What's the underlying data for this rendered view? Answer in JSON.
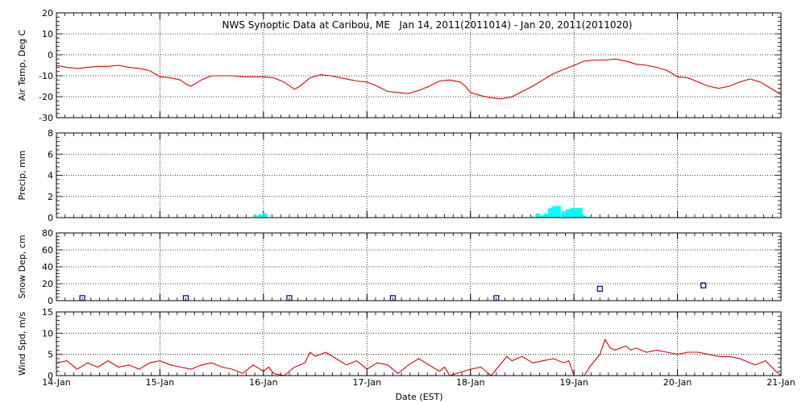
{
  "chart_data": {
    "type": "multi-panel",
    "title": "NWS Synoptic Data at Caribou, ME   Jan 14, 2011(2011014) - Jan 20, 2011(2011020)",
    "xlabel": "Date (EST)",
    "x_ticks": [
      "14-Jan",
      "15-Jan",
      "16-Jan",
      "17-Jan",
      "18-Jan",
      "19-Jan",
      "20-Jan",
      "21-Jan"
    ],
    "xlim_days": [
      0,
      7
    ],
    "panels": [
      {
        "id": "air-temp",
        "type": "line",
        "ylabel": "Air Temp, Deg C",
        "ylim": [
          -30,
          20
        ],
        "yticks": [
          -30,
          -20,
          -10,
          0,
          10,
          20
        ],
        "color": "#dd0000",
        "points": [
          [
            0,
            -5
          ],
          [
            0.1,
            -6
          ],
          [
            0.2,
            -6.5
          ],
          [
            0.3,
            -6
          ],
          [
            0.4,
            -5.5
          ],
          [
            0.5,
            -5.5
          ],
          [
            0.6,
            -5
          ],
          [
            0.7,
            -6
          ],
          [
            0.8,
            -6.5
          ],
          [
            0.9,
            -7.5
          ],
          [
            1.0,
            -10.5
          ],
          [
            1.1,
            -11
          ],
          [
            1.2,
            -12
          ],
          [
            1.25,
            -14
          ],
          [
            1.3,
            -15
          ],
          [
            1.4,
            -12
          ],
          [
            1.5,
            -10
          ],
          [
            1.6,
            -10
          ],
          [
            1.7,
            -10
          ],
          [
            1.8,
            -10.5
          ],
          [
            1.9,
            -10.5
          ],
          [
            2.0,
            -10.5
          ],
          [
            2.1,
            -11
          ],
          [
            2.2,
            -13
          ],
          [
            2.3,
            -16.5
          ],
          [
            2.35,
            -15
          ],
          [
            2.45,
            -11
          ],
          [
            2.55,
            -9.5
          ],
          [
            2.65,
            -10
          ],
          [
            2.8,
            -11.5
          ],
          [
            2.9,
            -12.5
          ],
          [
            3.0,
            -13
          ],
          [
            3.1,
            -15
          ],
          [
            3.2,
            -17.5
          ],
          [
            3.3,
            -18
          ],
          [
            3.4,
            -18.5
          ],
          [
            3.5,
            -17
          ],
          [
            3.6,
            -15
          ],
          [
            3.7,
            -12.5
          ],
          [
            3.8,
            -12
          ],
          [
            3.9,
            -13
          ],
          [
            3.95,
            -15
          ],
          [
            4.0,
            -18
          ],
          [
            4.1,
            -19.5
          ],
          [
            4.2,
            -20.5
          ],
          [
            4.3,
            -21
          ],
          [
            4.4,
            -20
          ],
          [
            4.5,
            -17.5
          ],
          [
            4.6,
            -15
          ],
          [
            4.7,
            -12
          ],
          [
            4.8,
            -9
          ],
          [
            4.9,
            -7
          ],
          [
            5.0,
            -5
          ],
          [
            5.1,
            -3
          ],
          [
            5.2,
            -2.5
          ],
          [
            5.3,
            -2.5
          ],
          [
            5.4,
            -2
          ],
          [
            5.5,
            -3
          ],
          [
            5.6,
            -4.5
          ],
          [
            5.7,
            -5
          ],
          [
            5.8,
            -6
          ],
          [
            5.9,
            -7.5
          ],
          [
            6.0,
            -10.5
          ],
          [
            6.1,
            -11
          ],
          [
            6.2,
            -13
          ],
          [
            6.3,
            -15
          ],
          [
            6.4,
            -16
          ],
          [
            6.5,
            -15
          ],
          [
            6.6,
            -13
          ],
          [
            6.7,
            -11.5
          ],
          [
            6.8,
            -13
          ],
          [
            6.9,
            -16
          ],
          [
            7.0,
            -19
          ]
        ]
      },
      {
        "id": "precip",
        "type": "bar",
        "ylabel": "Precip, mm",
        "ylim": [
          0,
          8
        ],
        "yticks": [
          0,
          2,
          4,
          6,
          8
        ],
        "color": "#00ffff",
        "bar_width_days": 0.0417,
        "bars": [
          [
            1.9,
            0.2
          ],
          [
            1.95,
            0.3
          ],
          [
            1.99,
            0.4
          ],
          [
            4.58,
            0.1
          ],
          [
            4.63,
            0.4
          ],
          [
            4.67,
            0.2
          ],
          [
            4.71,
            0.4
          ],
          [
            4.75,
            0.9
          ],
          [
            4.79,
            1.1
          ],
          [
            4.83,
            1.1
          ],
          [
            4.88,
            0.6
          ],
          [
            4.92,
            0.8
          ],
          [
            4.96,
            0.9
          ],
          [
            5.0,
            0.9
          ],
          [
            5.04,
            0.9
          ],
          [
            5.08,
            0.2
          ],
          [
            5.13,
            0.1
          ]
        ]
      },
      {
        "id": "snow-depth",
        "type": "scatter",
        "ylabel": "Snow Dep, cm",
        "ylim": [
          0,
          80
        ],
        "yticks": [
          0,
          20,
          40,
          60,
          80
        ],
        "color": "#000080",
        "points": [
          [
            0.25,
            3
          ],
          [
            1.25,
            3
          ],
          [
            2.25,
            3
          ],
          [
            3.25,
            3
          ],
          [
            4.25,
            3
          ],
          [
            5.25,
            14
          ],
          [
            6.25,
            18
          ]
        ]
      },
      {
        "id": "wind-speed",
        "type": "line",
        "ylabel": "Wind Spd, m/s",
        "ylim": [
          0,
          15
        ],
        "yticks": [
          0,
          5,
          10,
          15
        ],
        "color": "#dd0000",
        "points": [
          [
            0,
            3
          ],
          [
            0.1,
            3.5
          ],
          [
            0.15,
            2.5
          ],
          [
            0.2,
            1.5
          ],
          [
            0.3,
            3
          ],
          [
            0.4,
            2
          ],
          [
            0.5,
            3.5
          ],
          [
            0.6,
            2
          ],
          [
            0.7,
            2.5
          ],
          [
            0.8,
            1.5
          ],
          [
            0.9,
            3
          ],
          [
            1.0,
            3.5
          ],
          [
            1.1,
            2.5
          ],
          [
            1.2,
            2
          ],
          [
            1.3,
            1.5
          ],
          [
            1.4,
            2.5
          ],
          [
            1.5,
            3
          ],
          [
            1.6,
            2
          ],
          [
            1.7,
            1.5
          ],
          [
            1.8,
            0.5
          ],
          [
            1.9,
            2.5
          ],
          [
            2.0,
            1
          ],
          [
            2.05,
            2
          ],
          [
            2.1,
            0.5
          ],
          [
            2.2,
            0
          ],
          [
            2.3,
            2
          ],
          [
            2.4,
            3
          ],
          [
            2.45,
            5.5
          ],
          [
            2.5,
            4.5
          ],
          [
            2.6,
            5.5
          ],
          [
            2.7,
            4
          ],
          [
            2.8,
            2.5
          ],
          [
            2.9,
            3.5
          ],
          [
            3.0,
            1.5
          ],
          [
            3.1,
            3
          ],
          [
            3.2,
            2.5
          ],
          [
            3.3,
            0.5
          ],
          [
            3.4,
            2.5
          ],
          [
            3.5,
            4
          ],
          [
            3.6,
            2.5
          ],
          [
            3.7,
            1
          ],
          [
            3.75,
            2
          ],
          [
            3.8,
            0
          ],
          [
            4.0,
            1.5
          ],
          [
            4.1,
            2
          ],
          [
            4.2,
            0
          ],
          [
            4.25,
            1.5
          ],
          [
            4.35,
            4.5
          ],
          [
            4.4,
            3.5
          ],
          [
            4.5,
            4.5
          ],
          [
            4.6,
            3
          ],
          [
            4.7,
            3.5
          ],
          [
            4.8,
            4
          ],
          [
            4.9,
            3
          ],
          [
            4.95,
            3.5
          ],
          [
            5.0,
            0
          ],
          [
            5.1,
            0
          ],
          [
            5.15,
            2
          ],
          [
            5.25,
            5
          ],
          [
            5.3,
            8.5
          ],
          [
            5.35,
            6.5
          ],
          [
            5.4,
            6
          ],
          [
            5.5,
            7
          ],
          [
            5.55,
            6
          ],
          [
            5.6,
            6.5
          ],
          [
            5.7,
            5.5
          ],
          [
            5.8,
            6
          ],
          [
            5.9,
            5.5
          ],
          [
            6.0,
            5
          ],
          [
            6.1,
            5.5
          ],
          [
            6.2,
            5.5
          ],
          [
            6.3,
            5
          ],
          [
            6.4,
            4.5
          ],
          [
            6.5,
            4.5
          ],
          [
            6.6,
            4
          ],
          [
            6.7,
            3
          ],
          [
            6.75,
            2.5
          ],
          [
            6.85,
            3.5
          ],
          [
            6.95,
            1
          ],
          [
            7.0,
            0
          ]
        ]
      }
    ]
  }
}
